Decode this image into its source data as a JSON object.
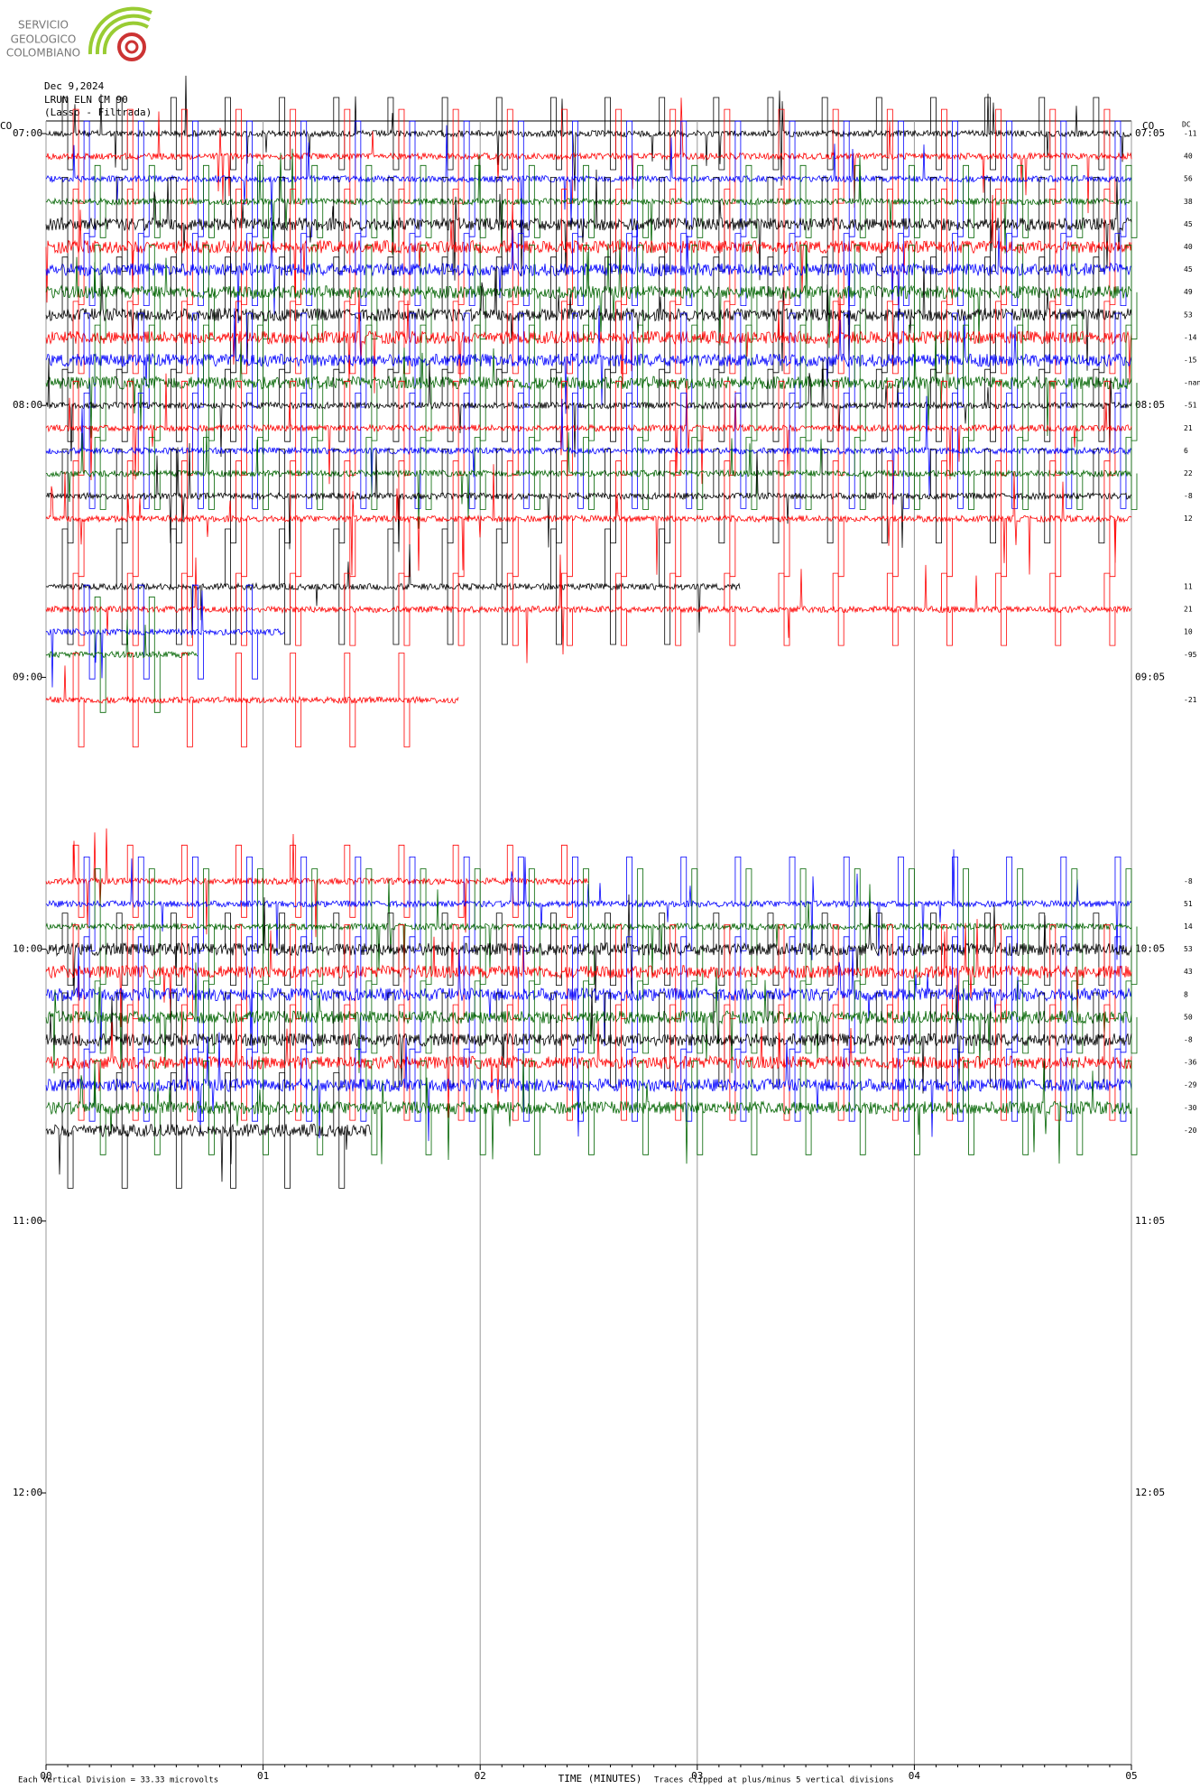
{
  "header": {
    "org": [
      "SERVICIO",
      "GEOLOGICO",
      "COLOMBIANO"
    ],
    "date": "Dec 9,2024",
    "station": "LRUN ELN CM 90",
    "filter": "(Lasso - Filtrada)",
    "network_left": "CO",
    "network_right": "CO",
    "dc_label": "DC"
  },
  "chart_data": {
    "type": "helicorder",
    "left_times": [
      "07:00",
      "08:00",
      "09:00",
      "10:00",
      "11:00",
      "12:00"
    ],
    "right_times": [
      "07:05",
      "08:05",
      "09:05",
      "10:05",
      "11:05",
      "12:05"
    ],
    "dc": [
      -11,
      40,
      56,
      38,
      45,
      40,
      45,
      49,
      53,
      -14,
      -15,
      "-nan",
      -51,
      21,
      6,
      22,
      -8,
      12,
      null,
      null,
      11,
      21,
      10,
      -95,
      null,
      -21,
      null,
      null,
      null,
      null,
      null,
      null,
      null,
      -8,
      51,
      14,
      53,
      43,
      8,
      50,
      -8,
      -36,
      -29,
      -30,
      -20
    ],
    "xlim": [
      0,
      5
    ],
    "xticks": [
      {
        "value": 0,
        "label": "00"
      },
      {
        "value": 1,
        "label": "01"
      },
      {
        "value": 2,
        "label": "02"
      },
      {
        "value": 3,
        "label": "03"
      },
      {
        "value": 4,
        "label": "04"
      },
      {
        "value": 5,
        "label": "05"
      }
    ],
    "xlabel": "TIME (MINUTES)",
    "footer_left": "Each Vertical Division =   33.33 microvolts",
    "footer_right": "Traces clipped at plus/minus 5 vertical divisions",
    "colors": [
      "#000000",
      "#ff0000",
      "#0000ff",
      "#006400"
    ]
  }
}
